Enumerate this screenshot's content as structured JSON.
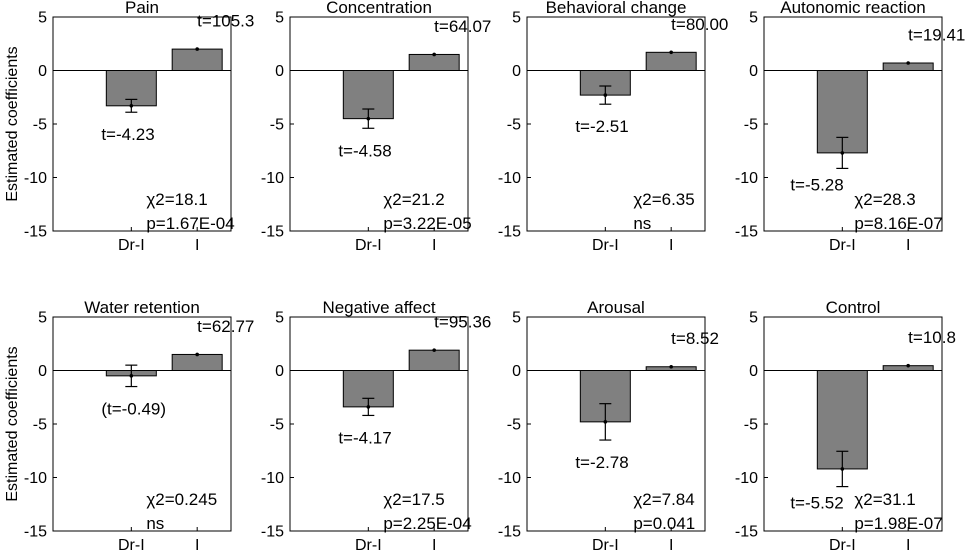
{
  "chart_data": {
    "type": "bar",
    "ylabel": "Estimated coefficients",
    "categories": [
      "Dr-I",
      "I"
    ],
    "ylim": [
      -15,
      5
    ],
    "yticks": [
      5,
      0,
      -5,
      -10,
      -15
    ],
    "panels": [
      {
        "title": "Pain",
        "bars": [
          {
            "category": "Dr-I",
            "value": -3.3,
            "err": 0.6,
            "label": "t=-4.23"
          },
          {
            "category": "I",
            "value": 2.0,
            "err": 0.05,
            "label": "t=105.3"
          }
        ],
        "stats": [
          "χ2=18.1",
          "p=1.67E-04"
        ]
      },
      {
        "title": "Concentration",
        "bars": [
          {
            "category": "Dr-I",
            "value": -4.5,
            "err": 0.9,
            "label": "t=-4.58"
          },
          {
            "category": "I",
            "value": 1.5,
            "err": 0.05,
            "label": "t=64.07"
          }
        ],
        "stats": [
          "χ2=21.2",
          "p=3.22E-05"
        ]
      },
      {
        "title": "Behavioral change",
        "bars": [
          {
            "category": "Dr-I",
            "value": -2.3,
            "err": 0.85,
            "label": "t=-2.51"
          },
          {
            "category": "I",
            "value": 1.7,
            "err": 0.05,
            "label": "t=80.00"
          }
        ],
        "stats": [
          "χ2=6.35",
          "ns"
        ]
      },
      {
        "title": "Autonomic reaction",
        "bars": [
          {
            "category": "Dr-I",
            "value": -7.7,
            "err": 1.45,
            "label": "t=-5.28"
          },
          {
            "category": "I",
            "value": 0.7,
            "err": 0.05,
            "label": "t=19.41"
          }
        ],
        "stats": [
          "χ2=28.3",
          "p=8.16E-07"
        ]
      },
      {
        "title": "Water retention",
        "bars": [
          {
            "category": "Dr-I",
            "value": -0.5,
            "err": 1.0,
            "label": "(t=-0.49)"
          },
          {
            "category": "I",
            "value": 1.5,
            "err": 0.05,
            "label": "t=62.77"
          }
        ],
        "stats": [
          "χ2=0.245",
          "ns"
        ]
      },
      {
        "title": "Negative affect",
        "bars": [
          {
            "category": "Dr-I",
            "value": -3.4,
            "err": 0.8,
            "label": "t=-4.17"
          },
          {
            "category": "I",
            "value": 1.9,
            "err": 0.05,
            "label": "t=95.36"
          }
        ],
        "stats": [
          "χ2=17.5",
          "p=2.25E-04"
        ]
      },
      {
        "title": "Arousal",
        "bars": [
          {
            "category": "Dr-I",
            "value": -4.8,
            "err": 1.7,
            "label": "t=-2.78"
          },
          {
            "category": "I",
            "value": 0.35,
            "err": 0.05,
            "label": "t=8.52"
          }
        ],
        "stats": [
          "χ2=7.84",
          "p=0.041"
        ]
      },
      {
        "title": "Control",
        "bars": [
          {
            "category": "Dr-I",
            "value": -9.2,
            "err": 1.65,
            "label": "t=-5.52"
          },
          {
            "category": "I",
            "value": 0.45,
            "err": 0.05,
            "label": "t=10.8"
          }
        ],
        "stats": [
          "χ2=31.1",
          "p=1.98E-07"
        ]
      }
    ]
  }
}
